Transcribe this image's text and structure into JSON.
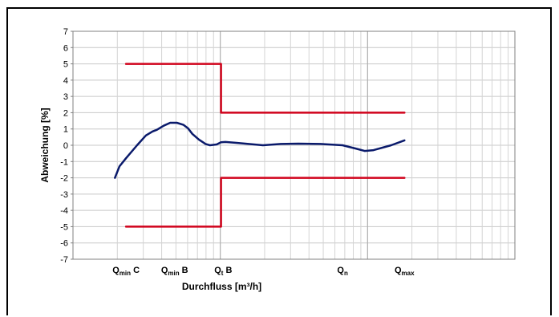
{
  "chart_data": {
    "type": "line",
    "xlabel": "Durchfluss [m³/h]",
    "ylabel": "Abweichung [%]",
    "ylim": [
      -7,
      7
    ],
    "xlim": [
      0,
      100
    ],
    "x_scale": "log",
    "grid": true,
    "x_ticks": [
      {
        "base": "Q",
        "sub": "min",
        "suffix": " C",
        "x": 12
      },
      {
        "base": "Q",
        "sub": "min",
        "suffix": " B",
        "x": 23
      },
      {
        "base": "Q",
        "sub": "t",
        "suffix": " B",
        "x": 34
      },
      {
        "base": "Q",
        "sub": "n",
        "suffix": "",
        "x": 61
      },
      {
        "base": "Q",
        "sub": "max",
        "suffix": "",
        "x": 75
      }
    ],
    "series": [
      {
        "color": "#d0021b",
        "role": "upper-limit",
        "points": [
          [
            12,
            5
          ],
          [
            33.5,
            5
          ],
          [
            33.5,
            2
          ],
          [
            75,
            2
          ]
        ]
      },
      {
        "color": "#d0021b",
        "role": "lower-limit",
        "points": [
          [
            12,
            -5
          ],
          [
            33.5,
            -5
          ],
          [
            33.5,
            -2
          ],
          [
            75,
            -2
          ]
        ]
      },
      {
        "color": "#0a1a6b",
        "role": "measured-deviation",
        "points": [
          [
            9.5,
            -2.0
          ],
          [
            10.5,
            -1.3
          ],
          [
            12,
            -0.8
          ],
          [
            14.5,
            0.0
          ],
          [
            16.5,
            0.6
          ],
          [
            18,
            0.85
          ],
          [
            19,
            0.95
          ],
          [
            20.5,
            1.2
          ],
          [
            22,
            1.38
          ],
          [
            23.5,
            1.38
          ],
          [
            25,
            1.25
          ],
          [
            26,
            1.05
          ],
          [
            27,
            0.7
          ],
          [
            28.5,
            0.35
          ],
          [
            30,
            0.08
          ],
          [
            31,
            0.0
          ],
          [
            32.5,
            0.05
          ],
          [
            33.5,
            0.18
          ],
          [
            34.5,
            0.2
          ],
          [
            37,
            0.15
          ],
          [
            41,
            0.05
          ],
          [
            43,
            0.0
          ],
          [
            47,
            0.08
          ],
          [
            51,
            0.1
          ],
          [
            56,
            0.08
          ],
          [
            61,
            0.0
          ],
          [
            64,
            -0.2
          ],
          [
            66,
            -0.35
          ],
          [
            68,
            -0.3
          ],
          [
            72,
            0.0
          ],
          [
            75,
            0.3
          ]
        ]
      }
    ]
  }
}
